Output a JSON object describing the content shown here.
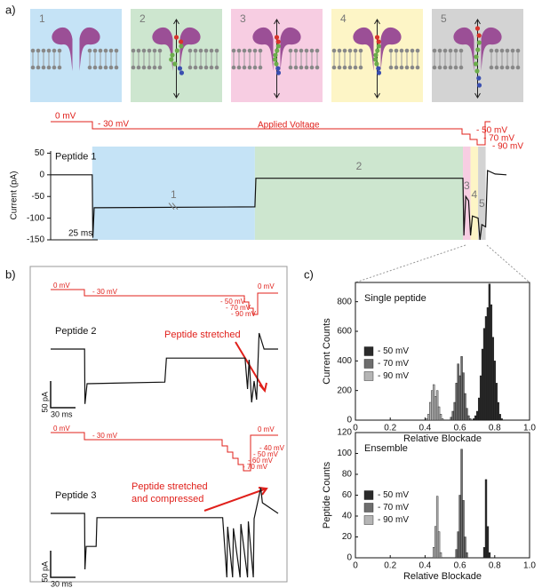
{
  "figure": {
    "panel_labels": [
      "a)",
      "b)",
      "c)"
    ]
  },
  "panel_a": {
    "states": [
      "1",
      "2",
      "3",
      "4",
      "5"
    ],
    "voltage_labels": [
      "0 mV",
      "- 30 mV",
      "Applied Voltage",
      "- 50 mV",
      "- 70 mV",
      "- 90 mV"
    ]
  },
  "panel_b": {
    "voltages_top": [
      "0 mV",
      "- 30 mV",
      "- 50 mV",
      "- 70 mV",
      "- 90 mV",
      "0 mV"
    ],
    "voltages_bottom": [
      "0 mV",
      "- 30 mV",
      "- 40 mV",
      "- 50 mV",
      "- 60 mV",
      "- 70 mV",
      "0 mV"
    ],
    "annotation_top": "Peptide stretched",
    "annotation_bottom": [
      "Peptide stretched",
      "and compressed"
    ]
  },
  "chart_data": [
    {
      "type": "line",
      "title": "Peptide 1",
      "ylabel": "Current (pA)",
      "scale_bar_x": "25 ms",
      "xlim": [
        0,
        241
      ],
      "ylim": [
        -150,
        55
      ],
      "yticks": [
        50,
        0,
        -50,
        -100,
        -150
      ],
      "color": "#111111",
      "regions": [
        {
          "label": "1",
          "start": 22,
          "end": 108,
          "color": "#c5e3f6"
        },
        {
          "label": "2",
          "start": 108,
          "end": 218,
          "color": "#cde6cf"
        },
        {
          "label": "3",
          "start": 218,
          "end": 222,
          "color": "#f7cde2"
        },
        {
          "label": "4",
          "start": 222,
          "end": 226,
          "color": "#fdf5c6"
        },
        {
          "label": "5",
          "start": 226,
          "end": 230,
          "color": "#d3d3d3"
        }
      ],
      "x": [
        0,
        22,
        22.3,
        23,
        108,
        108.5,
        218,
        218.5,
        219.5,
        221,
        222,
        223,
        226,
        227,
        228,
        230,
        231,
        235,
        241
      ],
      "values": [
        0,
        0,
        -145,
        -76,
        -74,
        -8,
        -8,
        -140,
        -50,
        -60,
        -140,
        -95,
        -100,
        -150,
        -115,
        -120,
        10,
        2,
        0
      ]
    },
    {
      "type": "line",
      "title": "Peptide 2",
      "scale_bar_x": "30 ms",
      "scale_bar_y": "50 pA",
      "xlim": [
        0,
        275
      ],
      "ylim": [
        -110,
        55
      ],
      "color": "#111111",
      "x": [
        0,
        41,
        41.5,
        44,
        138,
        140,
        235,
        238,
        240,
        243,
        246,
        249,
        252,
        258,
        275
      ],
      "values": [
        0,
        0,
        -103,
        -65,
        -62,
        -17,
        -17,
        -75,
        -20,
        -100,
        -60,
        -95,
        30,
        0,
        0
      ]
    },
    {
      "type": "line",
      "title": "Peptide 3",
      "scale_bar_x": "30 ms",
      "scale_bar_y": "50 pA",
      "xlim": [
        0,
        275
      ],
      "ylim": [
        -120,
        55
      ],
      "color": "#111111",
      "x": [
        0,
        41,
        41.5,
        43,
        55,
        56,
        208,
        213,
        214,
        220,
        221,
        229,
        230,
        238,
        239,
        245,
        246,
        254,
        256,
        275
      ],
      "values": [
        0,
        0,
        -105,
        -62,
        -62,
        -8,
        -8,
        -120,
        -25,
        -120,
        -28,
        -120,
        -20,
        -120,
        -15,
        -120,
        -10,
        48,
        20,
        0
      ]
    },
    {
      "type": "bar",
      "title": "Single peptide",
      "xlabel": "Relative Blockade",
      "ylabel": "Current Counts",
      "xlim": [
        0,
        1
      ],
      "ylim": [
        0,
        930
      ],
      "xticks": [
        0,
        0.2,
        0.4,
        0.6,
        0.8,
        {
          "value": 1,
          "label": "1.0"
        }
      ],
      "yticks": [
        0,
        200,
        400,
        600,
        800
      ],
      "legend": "left",
      "series": [
        {
          "name": "- 50 mV",
          "color": "#2b2b2b",
          "x": [
            0.68,
            0.69,
            0.7,
            0.71,
            0.72,
            0.73,
            0.74,
            0.75,
            0.76,
            0.77,
            0.78,
            0.79,
            0.8,
            0.81,
            0.82,
            0.83,
            0.84
          ],
          "values": [
            10,
            30,
            60,
            150,
            300,
            480,
            620,
            700,
            760,
            920,
            780,
            560,
            400,
            250,
            120,
            40,
            10
          ]
        },
        {
          "name": "- 70 mV",
          "color": "#6e6e6e",
          "x": [
            0.55,
            0.56,
            0.57,
            0.58,
            0.59,
            0.6,
            0.61,
            0.62,
            0.63,
            0.64,
            0.65,
            0.66
          ],
          "values": [
            20,
            60,
            120,
            250,
            380,
            300,
            430,
            320,
            180,
            80,
            30,
            10
          ]
        },
        {
          "name": "- 90 mV",
          "color": "#b5b5b5",
          "x": [
            0.41,
            0.42,
            0.43,
            0.44,
            0.45,
            0.46,
            0.47,
            0.48,
            0.49,
            0.5
          ],
          "values": [
            10,
            40,
            120,
            200,
            240,
            160,
            200,
            90,
            40,
            10
          ]
        }
      ]
    },
    {
      "type": "bar",
      "title": "Ensemble",
      "xlabel": "Relative Blockade",
      "ylabel": "Peptide Counts",
      "xlim": [
        0,
        1
      ],
      "ylim": [
        0,
        120
      ],
      "xticks": [
        0,
        0.2,
        0.4,
        0.6,
        0.8,
        {
          "value": 1,
          "label": "1.0"
        }
      ],
      "yticks": [
        0,
        20,
        40,
        60,
        80,
        100,
        120
      ],
      "legend": "left",
      "series": [
        {
          "name": "- 50 mV",
          "color": "#2b2b2b",
          "x": [
            0.74,
            0.75,
            0.76,
            0.77
          ],
          "values": [
            10,
            75,
            30,
            5
          ]
        },
        {
          "name": "- 70 mV",
          "color": "#6e6e6e",
          "x": [
            0.58,
            0.59,
            0.6,
            0.61,
            0.62,
            0.63,
            0.64
          ],
          "values": [
            8,
            25,
            60,
            104,
            55,
            20,
            5
          ]
        },
        {
          "name": "- 90 mV",
          "color": "#b5b5b5",
          "x": [
            0.45,
            0.46,
            0.47,
            0.48,
            0.49
          ],
          "values": [
            10,
            30,
            59,
            25,
            5
          ]
        }
      ]
    }
  ]
}
